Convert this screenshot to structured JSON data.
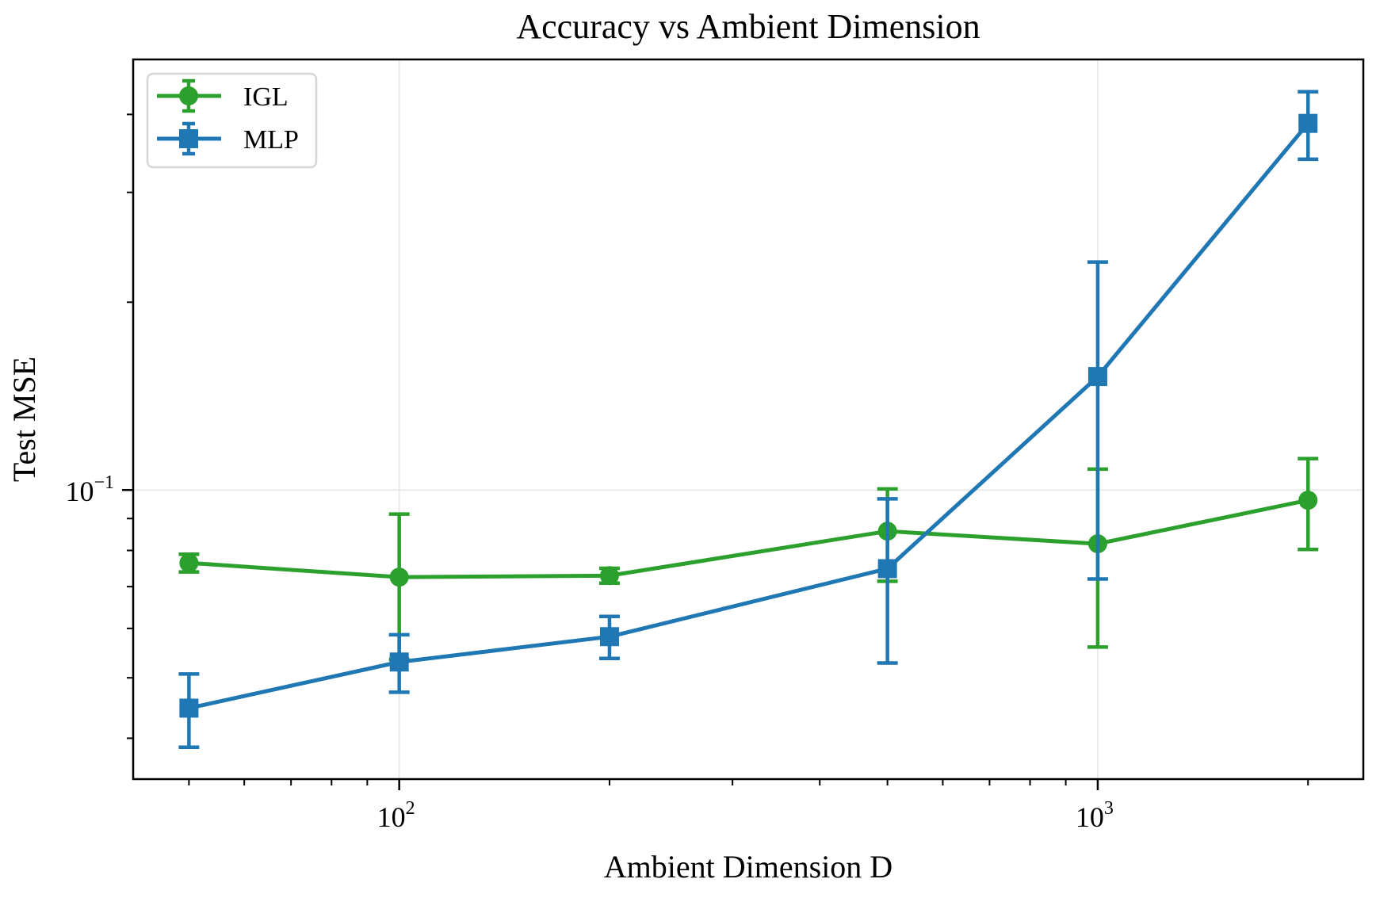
{
  "chart_data": {
    "type": "line",
    "title": "Accuracy vs Ambient Dimension",
    "xlabel": "Ambient Dimension D",
    "ylabel": "Test MSE",
    "xscale": "log",
    "yscale": "log",
    "xlim": [
      41.6,
      2400
    ],
    "ylim": [
      0.0344,
      0.49
    ],
    "x_ticks": [
      {
        "value": 100,
        "base": "10",
        "exp": "2"
      },
      {
        "value": 1000,
        "base": "10",
        "exp": "3"
      }
    ],
    "y_ticks": [
      {
        "value": 0.1,
        "base": "10",
        "exp": "−1"
      }
    ],
    "grid": true,
    "legend_position": "top-left",
    "x": [
      50,
      100,
      200,
      500,
      1000,
      2000
    ],
    "series": [
      {
        "name": "IGL",
        "color": "#2ca02c",
        "marker": "circle",
        "values": [
          0.0764,
          0.0725,
          0.0729,
          0.0859,
          0.082,
          0.0963
        ],
        "errors": [
          0.0025,
          0.019,
          0.002,
          0.0145,
          0.026,
          0.016
        ]
      },
      {
        "name": "MLP",
        "color": "#1f77b4",
        "marker": "square",
        "values": [
          0.0447,
          0.053,
          0.0582,
          0.0748,
          0.152,
          0.387
        ],
        "errors": [
          0.006,
          0.0056,
          0.0045,
          0.022,
          0.08,
          0.048
        ]
      }
    ]
  }
}
